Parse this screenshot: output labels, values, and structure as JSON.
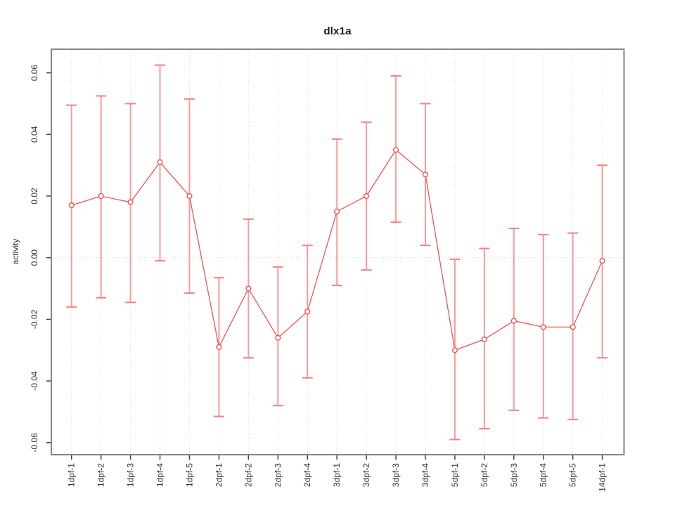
{
  "title": "dlx1a",
  "chart_data": {
    "type": "line",
    "title": "dlx1a",
    "xlabel": "",
    "ylabel": "activity",
    "categories": [
      "1dpf-1",
      "1dpf-2",
      "1dpf-3",
      "1dpf-4",
      "1dpf-5",
      "2dpf-1",
      "2dpf-2",
      "2dpf-3",
      "2dpf-4",
      "3dpf-1",
      "3dpf-2",
      "3dpf-3",
      "3dpf-4",
      "5dpf-1",
      "5dpf-2",
      "5dpf-3",
      "5dpf-4",
      "5dpf-5",
      "14dpf-1"
    ],
    "series": [
      {
        "name": "activity",
        "values": [
          0.017,
          0.02,
          0.018,
          0.031,
          0.02,
          -0.029,
          -0.01,
          -0.026,
          -0.0175,
          0.015,
          0.02,
          0.035,
          0.027,
          -0.03,
          -0.0265,
          -0.0205,
          -0.0225,
          -0.0225,
          -0.001
        ],
        "error_upper": [
          0.0495,
          0.0525,
          0.05,
          0.0625,
          0.0515,
          -0.0065,
          0.0125,
          -0.003,
          0.004,
          0.0385,
          0.044,
          0.059,
          0.05,
          -0.0005,
          0.003,
          0.0095,
          0.0075,
          0.008,
          0.03
        ],
        "error_lower": [
          -0.016,
          -0.013,
          -0.0145,
          -0.001,
          -0.0115,
          -0.0515,
          -0.0325,
          -0.048,
          -0.039,
          -0.009,
          -0.004,
          0.0115,
          0.004,
          -0.059,
          -0.0555,
          -0.0495,
          -0.052,
          -0.0525,
          -0.0325
        ]
      }
    ],
    "y_ticks": [
      0.06,
      0.04,
      0.02,
      0.0,
      -0.02,
      -0.04,
      -0.06
    ],
    "y_tick_labels": [
      "0.06",
      "0.04",
      "0.02",
      "0.00",
      "-0.02",
      "-0.04",
      "-0.06"
    ],
    "ylim": [
      -0.064,
      0.068
    ],
    "grid": "vertical dotted gridlines at each category; dotted horizontal line at y=0",
    "legend": "none",
    "marker": "open-circle",
    "style": {
      "line_color": "#f25353",
      "marker_color": "#f25353",
      "error_bar_color": "#fb9a9a",
      "error_cap_color": "#f98080",
      "grid_color": "#d9d9d9",
      "zero_line_color": "#cccccc",
      "box_color": "#868686",
      "tick_color": "#404040",
      "tick_label_color": "#303030"
    }
  }
}
